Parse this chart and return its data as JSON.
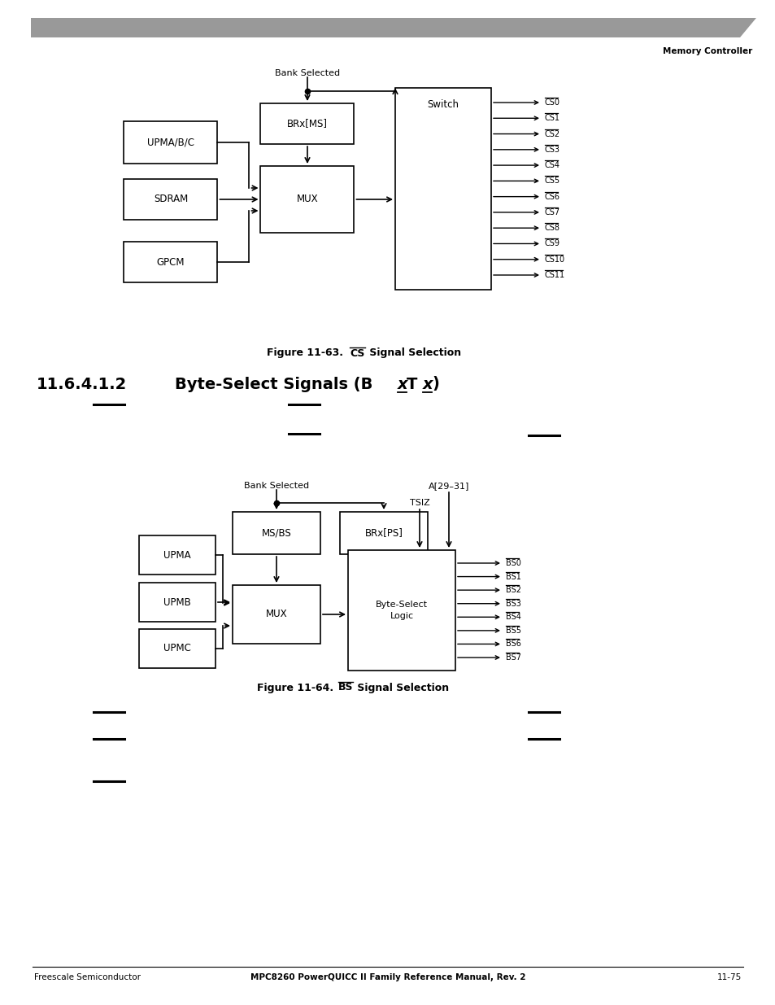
{
  "page_title_right": "Memory Controller",
  "footer_left": "Freescale Semiconductor",
  "footer_right": "11-75",
  "footer_center": "MPC8260 PowerQUICC II Family Reference Manual, Rev. 2",
  "header_bar_color": "#999999",
  "cs_signals": [
    "CS0",
    "CS1",
    "CS2",
    "CS3",
    "CS4",
    "CS5",
    "CS6",
    "CS7",
    "CS8",
    "CS9",
    "CS10",
    "CS11"
  ],
  "bs_signals": [
    "BS0",
    "BS1",
    "BS2",
    "BS3",
    "BS4",
    "BS5",
    "BS6",
    "BS7"
  ]
}
